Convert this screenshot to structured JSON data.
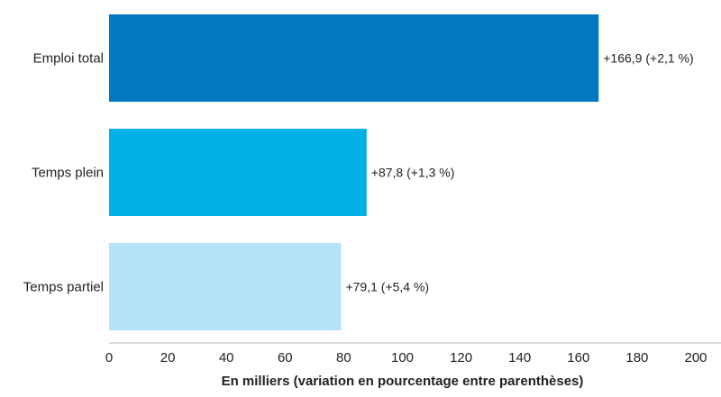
{
  "chart_data": {
    "type": "bar",
    "orientation": "horizontal",
    "categories": [
      "Emploi total",
      "Temps plein",
      "Temps partiel"
    ],
    "values": [
      166.9,
      87.8,
      79.1
    ],
    "data_labels": [
      "+166,9 (+2,1 %)",
      "+87,8 (+1,3 %)",
      "+79,1 (+5,4 %)"
    ],
    "colors": [
      "#0278c2",
      "#00b0e6",
      "#b6e2fa"
    ],
    "xlabel": "En milliers (variation en pourcentage entre parenthèses)",
    "xlim": [
      0,
      200
    ],
    "xticks": [
      0,
      20,
      40,
      60,
      80,
      100,
      120,
      140,
      160,
      180,
      200
    ],
    "grid": false,
    "legend": "none"
  }
}
